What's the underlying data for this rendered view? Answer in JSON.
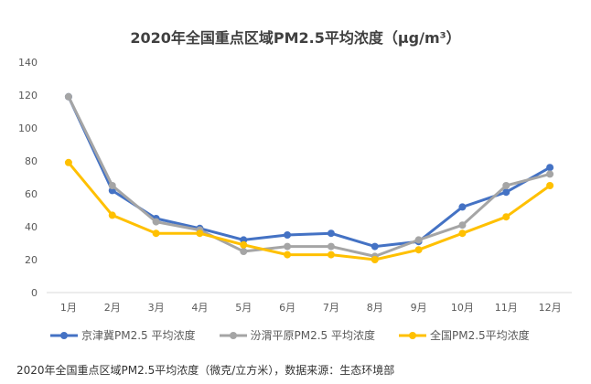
{
  "chart_data": {
    "type": "line",
    "title": "2020年全国重点区域PM2.5平均浓度（μg/m³）",
    "categories": [
      "1月",
      "2月",
      "3月",
      "4月",
      "5月",
      "6月",
      "7月",
      "8月",
      "9月",
      "10月",
      "11月",
      "12月"
    ],
    "ylim": [
      0,
      140
    ],
    "yticks": [
      0,
      20,
      40,
      60,
      80,
      100,
      120,
      140
    ],
    "grid": false,
    "legend": "bottom",
    "series": [
      {
        "name": "京津冀PM2.5 平均浓度",
        "color": "#4472C4",
        "values": [
          119,
          62,
          45,
          39,
          32,
          35,
          36,
          28,
          31,
          52,
          61,
          76
        ]
      },
      {
        "name": "汾渭平原PM2.5 平均浓度",
        "color": "#A5A5A5",
        "values": [
          119,
          65,
          43,
          38,
          25,
          28,
          28,
          22,
          32,
          41,
          65,
          72
        ]
      },
      {
        "name": "全国PM2.5平均浓度",
        "color": "#FFC000",
        "values": [
          79,
          47,
          36,
          36,
          29,
          23,
          23,
          20,
          26,
          36,
          46,
          65
        ]
      }
    ]
  },
  "caption": "2020年全国重点区域PM2.5平均浓度（微克/立方米），数据来源：生态环境部"
}
